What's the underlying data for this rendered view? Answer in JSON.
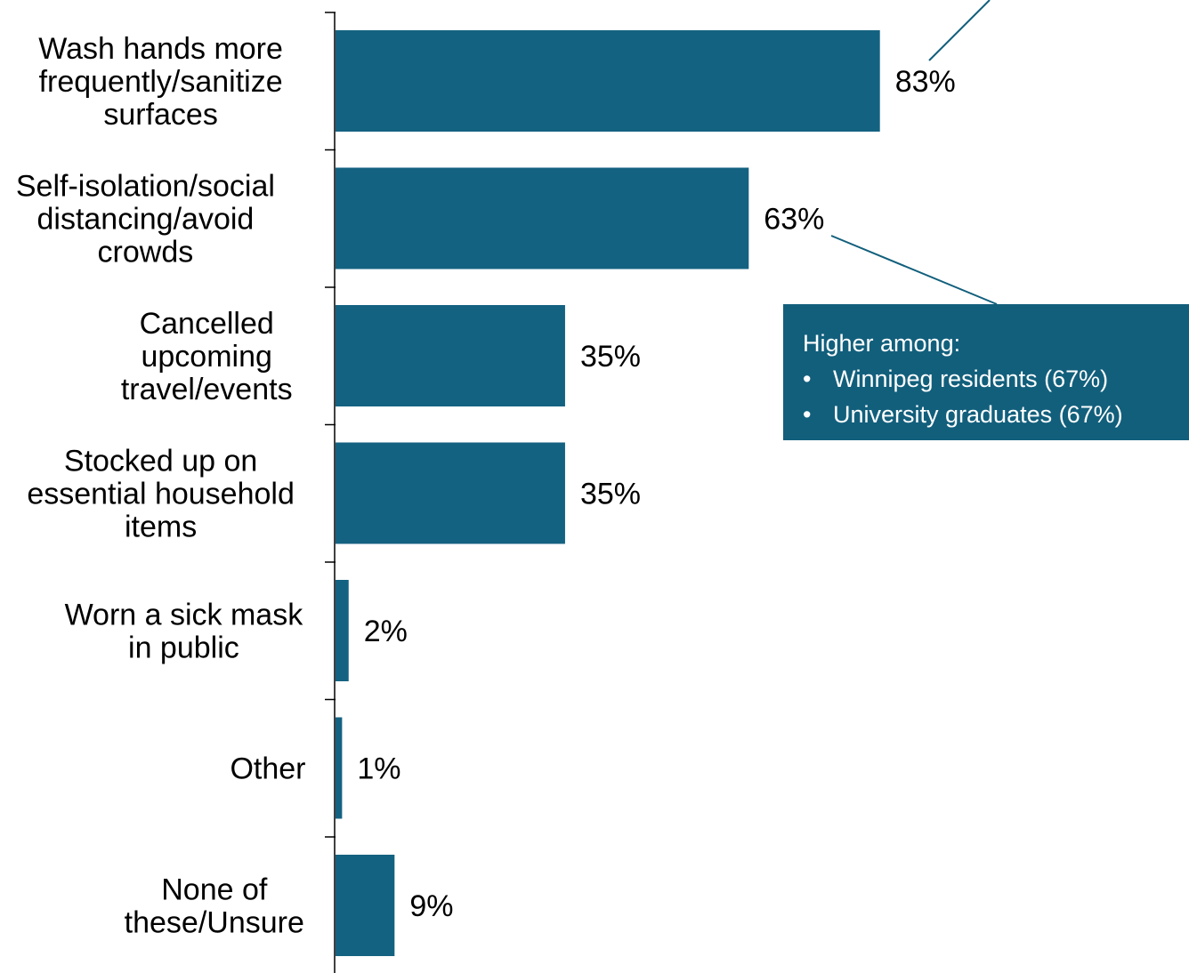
{
  "chart_data": {
    "type": "bar",
    "orientation": "horizontal",
    "categories": [
      [
        "Wash hands more",
        "frequently/sanitize",
        "surfaces"
      ],
      [
        "Self-isolation/social",
        "distancing/avoid",
        "crowds"
      ],
      [
        "Cancelled",
        "upcoming",
        "travel/events"
      ],
      [
        "Stocked up on",
        "essential household",
        "items"
      ],
      [
        "Worn a sick mask",
        "in public"
      ],
      [
        "Other"
      ],
      [
        "None of",
        "these/Unsure"
      ]
    ],
    "values": [
      83,
      63,
      35,
      35,
      2,
      1,
      9
    ],
    "data_labels": [
      "83%",
      "63%",
      "35%",
      "35%",
      "2%",
      "1%",
      "9%"
    ],
    "xlim": [
      0,
      100
    ],
    "grid": false,
    "legend": "none",
    "bar_color": "#146281"
  },
  "callout": {
    "heading": "Higher among:",
    "bullet_glyph": "•",
    "items": [
      "Winnipeg residents (67%)",
      "University graduates (67%)"
    ],
    "background": "#125f7c",
    "text_color": "#ffffff"
  }
}
